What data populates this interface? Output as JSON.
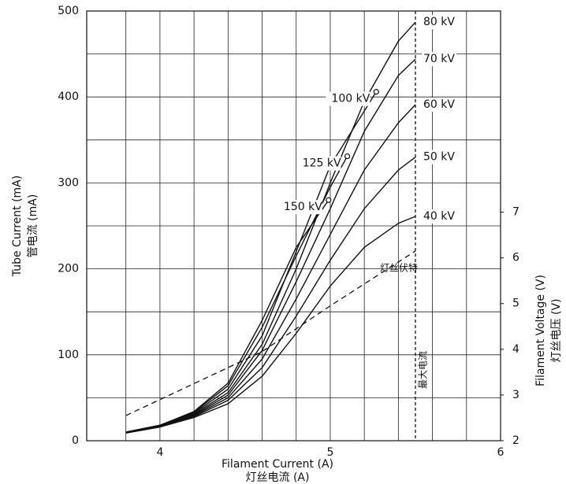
{
  "chart_data": {
    "type": "line",
    "xlabel": "Filament Current (A)",
    "xlabel2": "灯丝电流 (A)",
    "ylabel": "Tube Current (mA)",
    "ylabel2": "管电流 (mA)",
    "y2label": "Filament Voltage (V)",
    "y2label2": "灯丝电压 (V)",
    "xlim": [
      3.57,
      6
    ],
    "xticks": [
      4,
      5,
      6
    ],
    "xminor": [
      3.8,
      4.2,
      4.4,
      4.6,
      4.8,
      5.2,
      5.4,
      5.6,
      5.8
    ],
    "ylim": [
      0,
      500
    ],
    "yticks": [
      0,
      100,
      200,
      300,
      400,
      500
    ],
    "yminor": [
      50,
      150,
      250,
      350,
      450
    ],
    "y2lim": [
      2,
      11.4
    ],
    "y2ticks": [
      2,
      3,
      4,
      5,
      6,
      7
    ],
    "grid": true,
    "max_current": {
      "x": 5.5,
      "label": "最大电流"
    },
    "series": [
      {
        "name": "40 kV",
        "color": "#111111",
        "x": [
          3.8,
          4.0,
          4.2,
          4.4,
          4.6,
          4.8,
          5.0,
          5.2,
          5.4,
          5.5
        ],
        "values": [
          9,
          16,
          27,
          43,
          75,
          125,
          180,
          225,
          253,
          261
        ]
      },
      {
        "name": "50 kV",
        "color": "#111111",
        "x": [
          3.8,
          4.0,
          4.2,
          4.4,
          4.6,
          4.8,
          5.0,
          5.2,
          5.4,
          5.5
        ],
        "values": [
          9,
          16,
          28,
          47,
          85,
          145,
          210,
          270,
          315,
          330
        ]
      },
      {
        "name": "60 kV",
        "color": "#111111",
        "x": [
          3.8,
          4.0,
          4.2,
          4.4,
          4.6,
          4.8,
          5.0,
          5.2,
          5.4,
          5.5
        ],
        "values": [
          9,
          17,
          29,
          50,
          95,
          165,
          240,
          315,
          370,
          391
        ]
      },
      {
        "name": "70 kV",
        "color": "#111111",
        "x": [
          3.8,
          4.0,
          4.2,
          4.4,
          4.6,
          4.8,
          5.0,
          5.2,
          5.4,
          5.5
        ],
        "values": [
          9,
          17,
          30,
          53,
          105,
          185,
          270,
          360,
          425,
          444
        ]
      },
      {
        "name": "80 kV",
        "color": "#111111",
        "x": [
          3.8,
          4.0,
          4.2,
          4.4,
          4.6,
          4.8,
          5.0,
          5.2,
          5.4,
          5.5
        ],
        "values": [
          10,
          17,
          31,
          56,
          112,
          200,
          300,
          395,
          465,
          487
        ]
      },
      {
        "name": "100 kV",
        "color": "#111111",
        "end_marker": true,
        "x": [
          3.8,
          4.0,
          4.2,
          4.4,
          4.6,
          4.8,
          5.0,
          5.27
        ],
        "values": [
          10,
          18,
          32,
          60,
          122,
          220,
          320,
          406
        ]
      },
      {
        "name": "125 kV",
        "color": "#111111",
        "end_marker": true,
        "x": [
          3.8,
          4.0,
          4.2,
          4.4,
          4.6,
          4.8,
          5.0,
          5.1
        ],
        "values": [
          10,
          18,
          33,
          64,
          132,
          215,
          295,
          331
        ]
      },
      {
        "name": "150 kV",
        "color": "#111111",
        "end_marker": true,
        "x": [
          3.8,
          4.0,
          4.2,
          4.4,
          4.6,
          4.8,
          4.99
        ],
        "values": [
          10,
          18,
          34,
          67,
          140,
          225,
          280
        ]
      },
      {
        "name": "灯丝伏特",
        "color": "#111111",
        "axis": "y2",
        "dash": true,
        "x": [
          3.8,
          4.2,
          4.6,
          5.0,
          5.5
        ],
        "values": [
          2.55,
          3.25,
          3.95,
          4.95,
          6.15
        ]
      }
    ]
  }
}
